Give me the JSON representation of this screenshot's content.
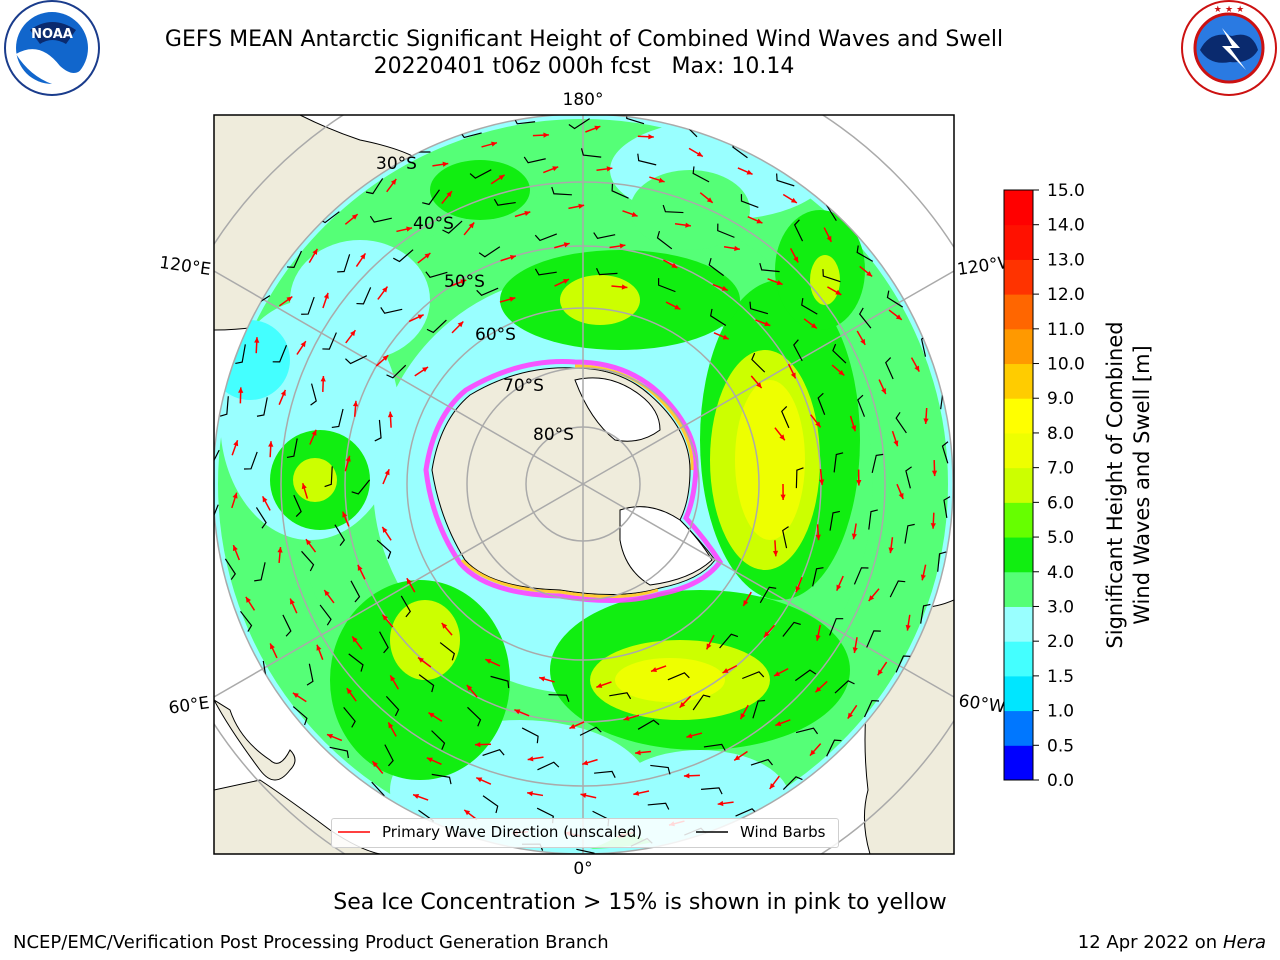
{
  "header": {
    "title_line1": "GEFS MEAN Antarctic Significant Height of Combined Wind Waves and Swell",
    "title_line2": "20220401 t06z 000h fcst   Max: 10.14",
    "noaa_logo_text": "NOAA",
    "noaa_ring_text": "NATIONAL OCEANIC AND ATMOSPHERIC ADMINISTRATION · U.S. DEPARTMENT OF COMMERCE",
    "nws_ring_text": "NATIONAL WEATHER SERVICE"
  },
  "map": {
    "projection": "south-polar-stereographic",
    "longitude_labels": {
      "top": "180°",
      "bottom": "0°",
      "upper_left": "120°E",
      "upper_right": "120°W",
      "lower_left": "60°E",
      "lower_right": "60°W"
    },
    "latitude_labels": [
      "30°S",
      "40°S",
      "50°S",
      "60°S",
      "70°S",
      "80°S"
    ],
    "max_value": 10.14
  },
  "legend": {
    "wave_direction_label": "Primary Wave Direction (unscaled)",
    "wind_barbs_label": "Wind Barbs",
    "wave_direction_color": "#ff0000",
    "wind_barbs_color": "#000000"
  },
  "colorbar": {
    "title_line1": "Significant Height of Combined",
    "title_line2": "Wind Waves and Swell [m]",
    "tick_labels": [
      "0.0",
      "0.5",
      "1.0",
      "1.5",
      "2.0",
      "3.0",
      "4.0",
      "5.0",
      "6.0",
      "7.0",
      "8.0",
      "9.0",
      "10.0",
      "11.0",
      "12.0",
      "13.0",
      "14.0",
      "15.0"
    ],
    "colors": [
      "#0000ff",
      "#0077ff",
      "#00e6ff",
      "#44ffff",
      "#99ffff",
      "#55ff77",
      "#11ee11",
      "#66ff00",
      "#ccff00",
      "#eeff00",
      "#ffff00",
      "#ffcc00",
      "#ff9900",
      "#ff6600",
      "#ff3300",
      "#ff1100",
      "#ff0000"
    ]
  },
  "caption": "Sea Ice Concentration > 15% is shown in pink to yellow",
  "footer": {
    "left": "NCEP/EMC/Verification Post Processing Product Generation Branch",
    "right_date": "12 Apr 2022 on",
    "right_host": "Hera"
  }
}
